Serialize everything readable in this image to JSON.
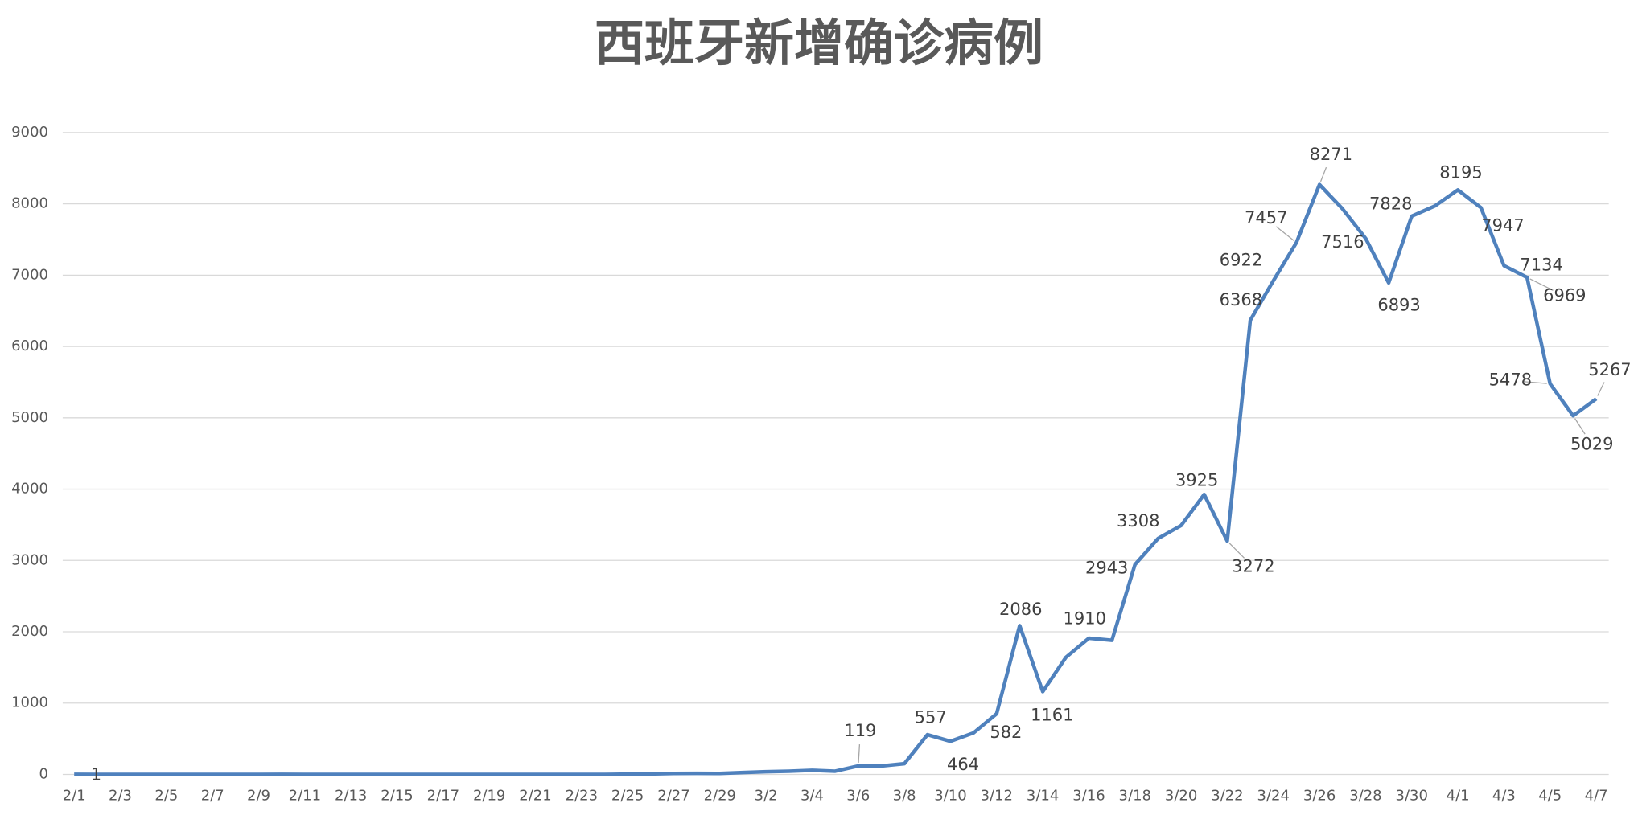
{
  "chart_data": {
    "type": "line",
    "title": "西班牙新增确诊病例",
    "categories": [
      "2/1",
      null,
      "2/3",
      null,
      "2/5",
      null,
      "2/7",
      null,
      "2/9",
      null,
      "2/11",
      null,
      "2/13",
      null,
      "2/15",
      null,
      "2/17",
      null,
      "2/19",
      null,
      "2/21",
      null,
      "2/23",
      null,
      "2/25",
      null,
      "2/27",
      null,
      "2/29",
      null,
      "3/2",
      null,
      "3/4",
      null,
      "3/6",
      null,
      "3/8",
      null,
      "3/10",
      null,
      "3/12",
      null,
      "3/14",
      null,
      "3/16",
      null,
      "3/18",
      null,
      "3/20",
      null,
      "3/22",
      null,
      "3/24",
      null,
      "3/26",
      null,
      "3/28",
      null,
      "3/30",
      null,
      "4/1",
      null,
      "4/3",
      null,
      "4/5",
      null,
      "4/7"
    ],
    "series": [
      {
        "name": "新增确诊",
        "color": "#4f81bd",
        "values": [
          1,
          0,
          0,
          0,
          0,
          0,
          0,
          0,
          0,
          1,
          0,
          0,
          0,
          0,
          0,
          0,
          0,
          0,
          0,
          0,
          0,
          0,
          0,
          0,
          4,
          6,
          13,
          15,
          13,
          27,
          37,
          45,
          57,
          45,
          119,
          118,
          150,
          557,
          464,
          582,
          850,
          2086,
          1161,
          1640,
          1910,
          1880,
          2943,
          3308,
          3490,
          3925,
          3272,
          6368,
          6922,
          7457,
          8271,
          7930,
          7516,
          6893,
          7828,
          7970,
          8195,
          7947,
          7134,
          6969,
          5478,
          5029,
          5267
        ],
        "value_labels": [
          "1",
          null,
          null,
          null,
          null,
          null,
          null,
          null,
          null,
          null,
          null,
          null,
          null,
          null,
          null,
          null,
          null,
          null,
          null,
          null,
          null,
          null,
          null,
          null,
          null,
          null,
          null,
          null,
          null,
          null,
          null,
          null,
          null,
          null,
          "119",
          null,
          null,
          "557",
          "464",
          "582",
          null,
          "2086",
          "1161",
          null,
          "1910",
          null,
          "2943",
          "3308",
          null,
          "3925",
          "3272",
          "6368",
          "6922",
          "7457",
          "8271",
          null,
          "7516",
          "6893",
          "7828",
          null,
          "8195",
          "7947",
          "7134",
          "6969",
          "5478",
          "5029",
          "5267"
        ]
      }
    ],
    "ylim": [
      0,
      9000
    ],
    "yticks": [
      0,
      1000,
      2000,
      3000,
      4000,
      5000,
      6000,
      7000,
      8000,
      9000
    ],
    "grid": true
  }
}
